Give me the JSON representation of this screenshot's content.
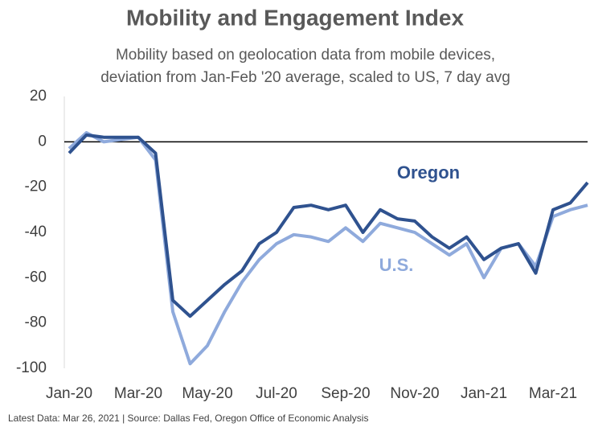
{
  "chart_data": {
    "type": "line",
    "title": "Mobility and Engagement Index",
    "subtitle": [
      "Mobility based on geolocation data from mobile devices,",
      "deviation from Jan-Feb '20 average, scaled to US, 7 day avg"
    ],
    "source": "Latest Data: Mar 26, 2021  |  Source: Dallas Fed, Oregon Office of Economic Analysis",
    "categories": [
      "Jan-20",
      null,
      null,
      null,
      "Mar-20",
      null,
      null,
      null,
      "May-20",
      null,
      null,
      null,
      "Jul-20",
      null,
      null,
      null,
      "Sep-20",
      null,
      null,
      null,
      "Nov-20",
      null,
      null,
      null,
      "Jan-21",
      null,
      null,
      null,
      "Mar-21",
      null,
      null
    ],
    "series": [
      {
        "name": "U.S.",
        "color": "#8faadc",
        "values": [
          -3,
          4,
          0,
          1,
          2,
          -8,
          -75,
          -98,
          -90,
          -75,
          -62,
          -52,
          -45,
          -41,
          -42,
          -44,
          -38,
          -44,
          -36,
          -38,
          -40,
          -45,
          -50,
          -45,
          -60,
          -47,
          -45,
          -55,
          -33,
          -30,
          -28
        ]
      },
      {
        "name": "Oregon",
        "color": "#2f528f",
        "values": [
          -5,
          3,
          2,
          2,
          2,
          -5,
          -70,
          -77,
          -70,
          -63,
          -57,
          -45,
          -40,
          -29,
          -28,
          -30,
          -28,
          -40,
          -30,
          -34,
          -35,
          -42,
          -47,
          -42,
          -52,
          -47,
          -45,
          -58,
          -30,
          -27,
          -18
        ]
      }
    ],
    "ylim": [
      -100,
      20
    ],
    "yticks": [
      -100,
      -80,
      -60,
      -40,
      -20,
      0,
      20
    ],
    "grid": false
  }
}
